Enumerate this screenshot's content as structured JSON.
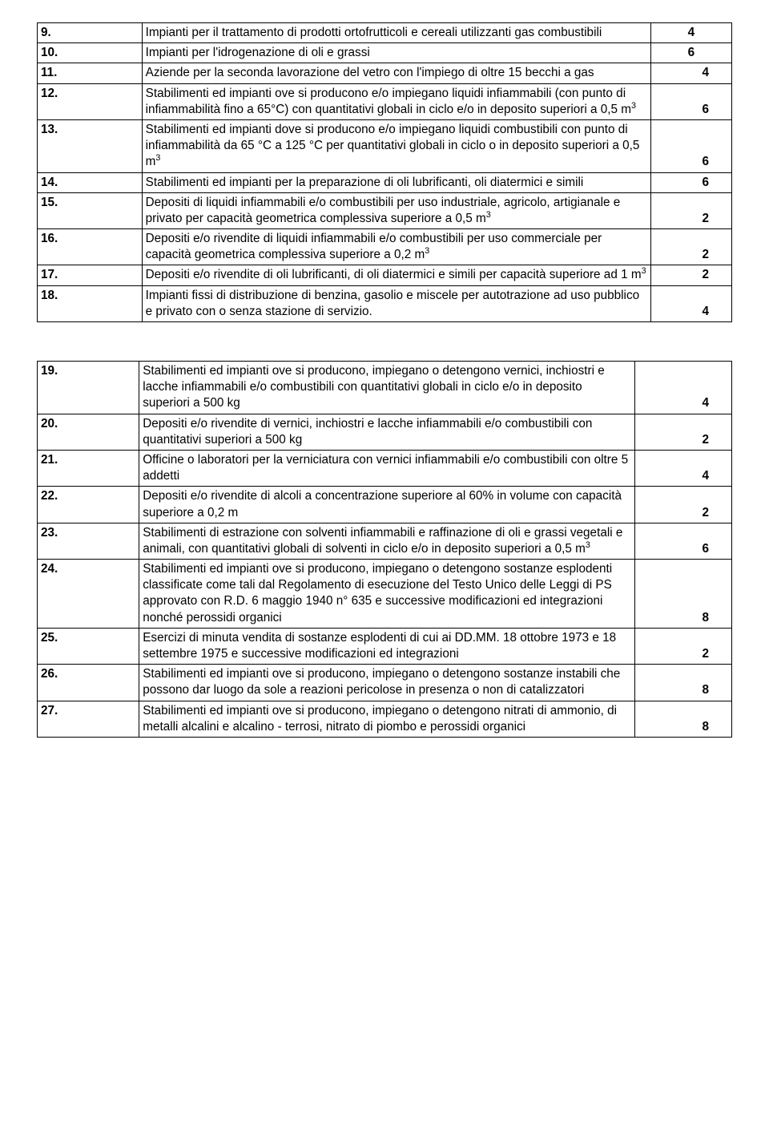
{
  "tables": [
    {
      "rows": [
        {
          "num": "9.",
          "desc": "Impianti per il trattamento di prodotti ortofrutticoli e cereali utilizzanti gas combustibili",
          "val": "4",
          "valAlign": "middle"
        },
        {
          "num": "10.",
          "desc": "Impianti per l'idrogenazione di oli e grassi",
          "val": "6",
          "valAlign": "middle"
        },
        {
          "num": "11.",
          "desc": "Aziende per la seconda lavorazione del vetro con l'impiego di oltre 15 becchi a gas",
          "val": "4",
          "valAlign": "bottom"
        },
        {
          "num": "12.",
          "desc": "Stabilimenti ed impianti ove si producono e/o impiegano liquidi infiammabili (con punto di infiammabilità fino a 65°C) con quantitativi globali in ciclo e/o in deposito superiori a 0,5 m<sup>3</sup>",
          "val": "6",
          "valAlign": "bottom"
        },
        {
          "num": "13.",
          "desc": "Stabilimenti ed impianti dove si producono e/o impiegano liquidi combustibili con punto di infiammabilità da 65 °C a 125 °C per quantitativi globali in ciclo o in deposito superiori a 0,5 m<sup>3</sup>",
          "val": "6",
          "valAlign": "bottom"
        },
        {
          "num": "14.",
          "desc": "Stabilimenti ed impianti per la preparazione di oli lubrificanti, oli diatermici e simili",
          "val": "6",
          "valAlign": "bottom"
        },
        {
          "num": "15.",
          "desc": "Depositi di liquidi infiammabili e/o combustibili per uso industriale, agricolo, artigianale e privato per capacità geometrica complessiva superiore a 0,5 m<sup>3</sup>",
          "val": "2",
          "valAlign": "bottom"
        },
        {
          "num": "16.",
          "desc": "Depositi e/o rivendite di liquidi infiammabili e/o combustibili per uso commerciale per capacità geometrica complessiva superiore a 0,2 m<sup>3</sup>",
          "val": "2",
          "valAlign": "bottom"
        },
        {
          "num": "17.",
          "desc": "Depositi e/o rivendite di oli lubrificanti, di oli diatermici e simili per capacità superiore ad 1 m<sup>3</sup>",
          "val": "2",
          "valAlign": "bottom"
        },
        {
          "num": "18.",
          "desc": "Impianti fissi di distribuzione di benzina, gasolio e miscele per autotrazione ad uso pubblico e privato con o senza stazione di servizio.",
          "val": "4",
          "valAlign": "bottom"
        }
      ]
    },
    {
      "rows": [
        {
          "num": "19.",
          "desc": "Stabilimenti ed impianti ove si producono, impiegano o detengono vernici, inchiostri e lacche infiammabili e/o combustibili con quantitativi globali in ciclo e/o in deposito superiori a 500 kg",
          "val": "4",
          "valAlign": "bottom"
        },
        {
          "num": "20.",
          "desc": "Depositi e/o rivendite di vernici, inchiostri e lacche infiammabili e/o combustibili con quantitativi superiori a 500 kg",
          "val": "2",
          "valAlign": "bottom"
        },
        {
          "num": "21.",
          "desc": "Officine o laboratori per la verniciatura con vernici infiammabili e/o combustibili con oltre 5 addetti",
          "val": "4",
          "valAlign": "bottom"
        },
        {
          "num": "22.",
          "desc": "Depositi e/o rivendite di alcoli a concentrazione superiore al 60% in volume con capacità superiore a 0,2 m",
          "val": "2",
          "valAlign": "bottom"
        },
        {
          "num": "23.",
          "desc": "Stabilimenti di estrazione con solventi infiammabili e raffinazione di oli e grassi vegetali e animali, con quantitativi globali di solventi in ciclo e/o in deposito superiori a 0,5 m<sup>3</sup>",
          "val": "6",
          "valAlign": "bottom"
        },
        {
          "num": "24.",
          "desc": "Stabilimenti ed impianti ove si producono, impiegano o detengono sostanze esplodenti classificate come tali dal Regolamento di esecuzione del Testo Unico delle Leggi di PS approvato con R.D. 6 maggio 1940 n° 635 e successive modificazioni ed integrazioni nonché perossidi organici",
          "val": "8",
          "valAlign": "bottom"
        },
        {
          "num": "25.",
          "desc": "Esercizi di minuta vendita di sostanze esplodenti di cui ai DD.MM. 18 ottobre 1973 e 18 settembre 1975 e successive modificazioni ed integrazioni",
          "val": "2",
          "valAlign": "bottom"
        },
        {
          "num": "26.",
          "desc": "Stabilimenti ed impianti ove si producono, impiegano o detengono sostanze instabili che possono dar luogo da sole a reazioni pericolose in presenza o non di catalizzatori",
          "val": "8",
          "valAlign": "bottom"
        },
        {
          "num": "27.",
          "desc": "Stabilimenti ed impianti ove si producono, impiegano o detengono nitrati di ammonio, di metalli alcalini e alcalino - terrosi, nitrato di piombo e perossidi organici",
          "val": "8",
          "valAlign": "bottom"
        }
      ]
    }
  ]
}
